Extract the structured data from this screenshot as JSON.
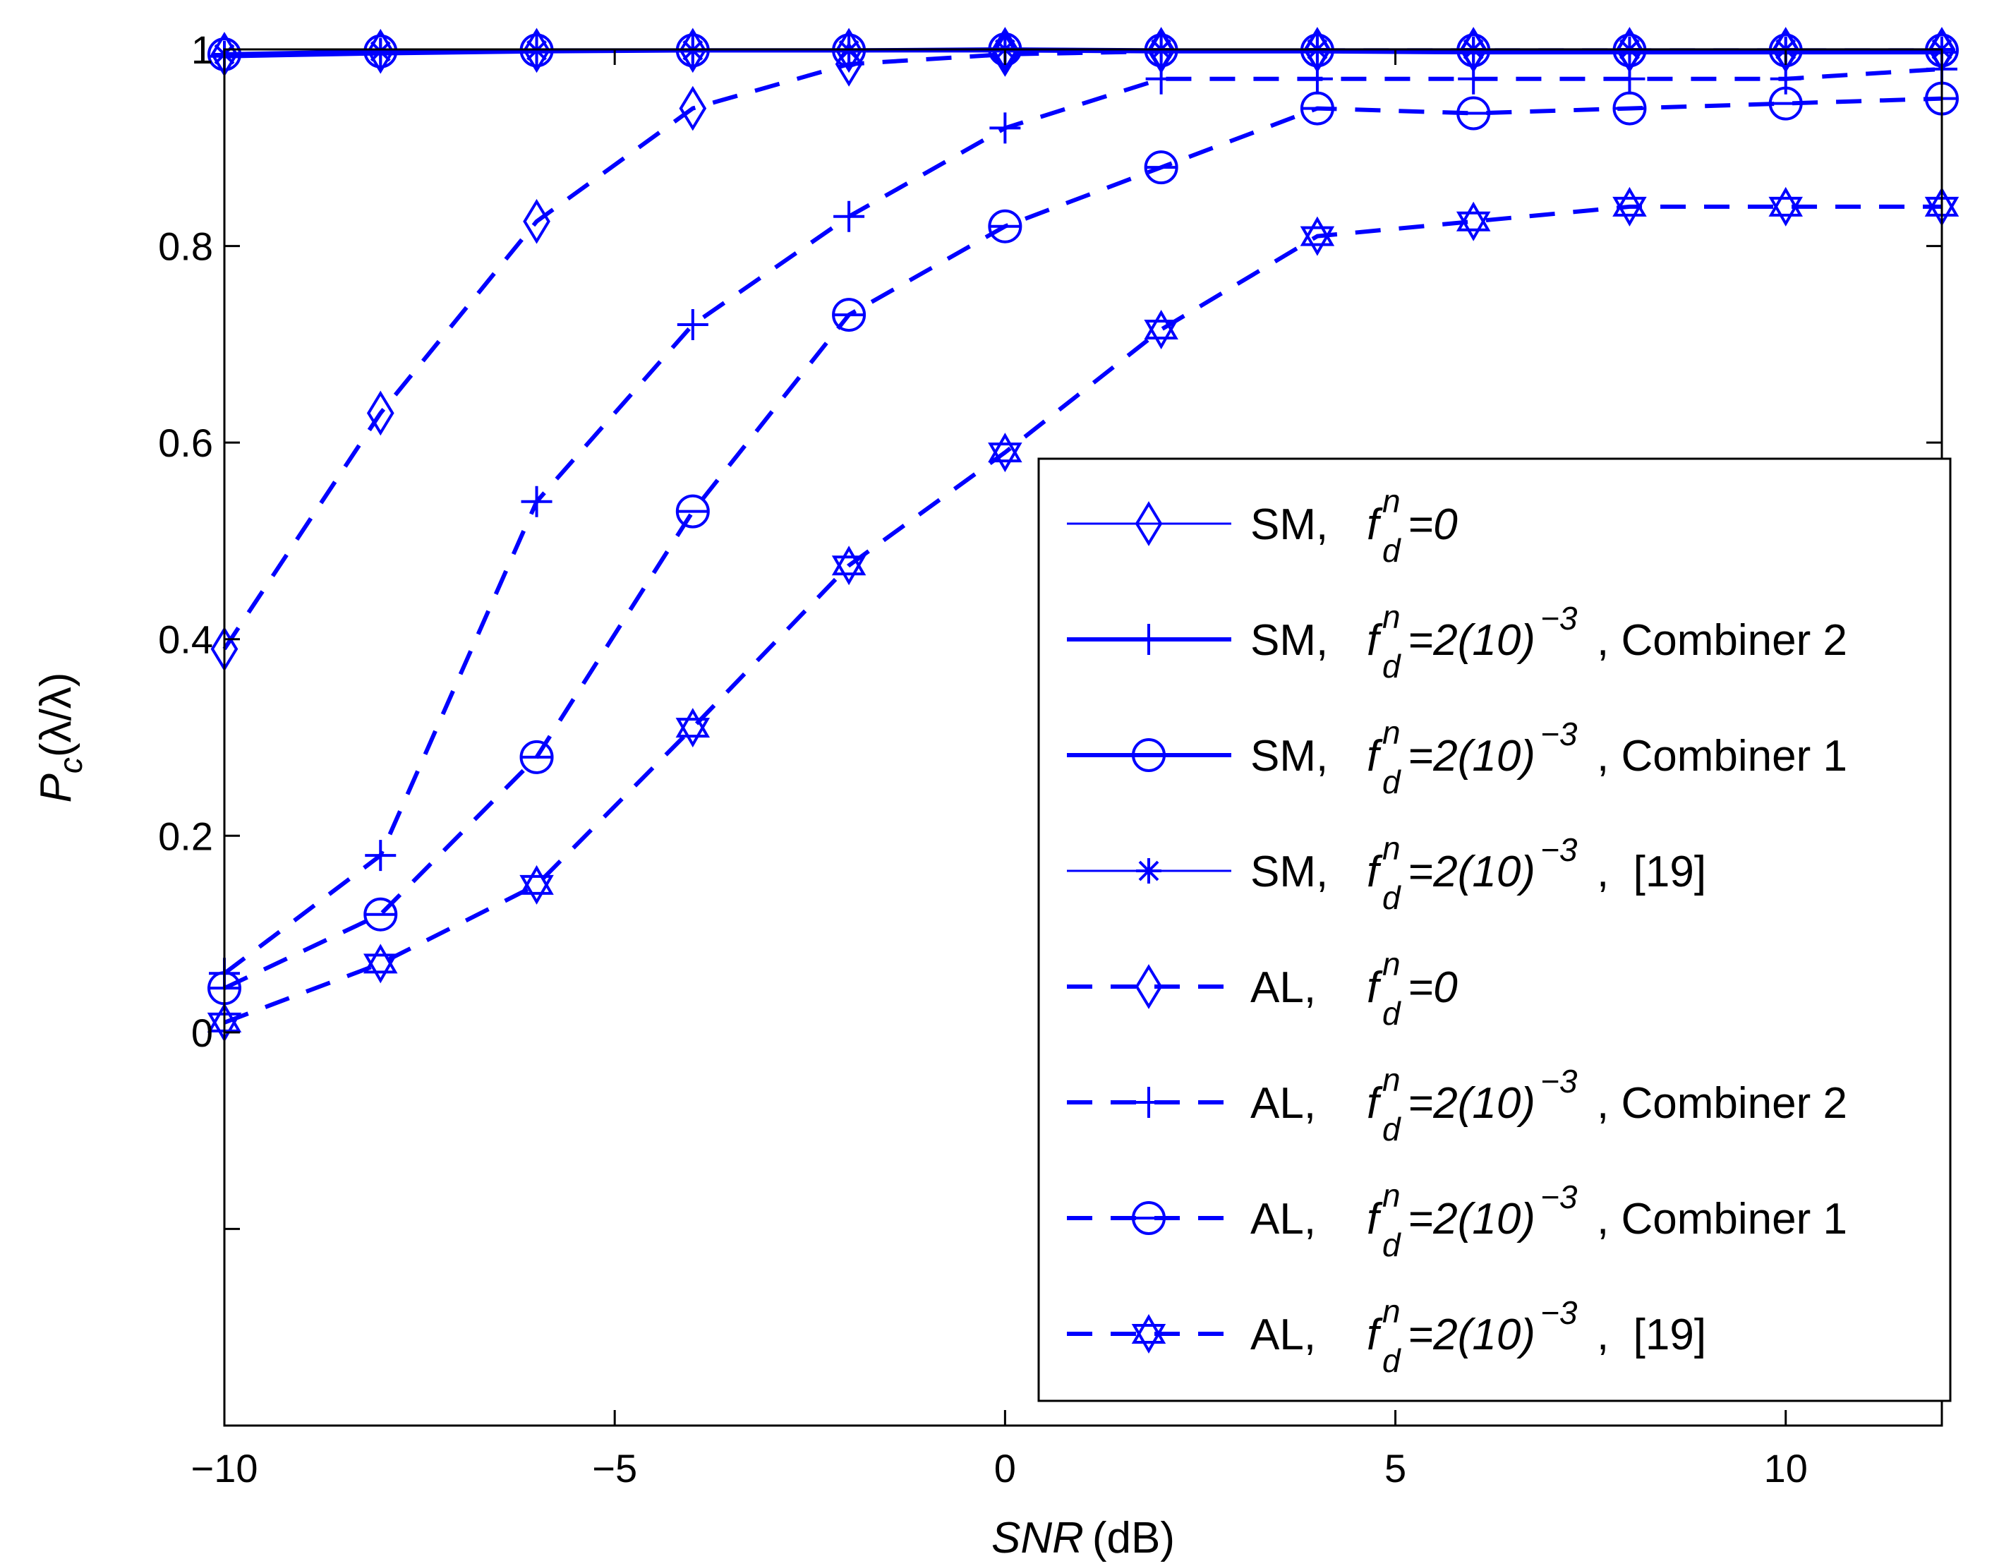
{
  "chart_data": {
    "type": "line",
    "title": "",
    "xlabel_italic": "SNR",
    "xlabel_unit": "(dB)",
    "ylabel": "Pc(λ/λ)",
    "ylabel_main": "P",
    "ylabel_sub": "c",
    "ylabel_rest": "(λ/λ)",
    "xlim": [
      -10,
      12
    ],
    "ylim": [
      -0.4,
      1.0
    ],
    "xticks": [
      -10,
      -5,
      0,
      5,
      10
    ],
    "xtick_labels": [
      "−10",
      "−5",
      "0",
      "5",
      "10"
    ],
    "yticks": [
      0,
      0.2,
      0.4,
      0.6,
      0.8,
      1
    ],
    "ytick_labels": [
      "0",
      "0.2",
      "0.4",
      "0.6",
      "0.8",
      "1"
    ],
    "y_minor_unlabeled_ticks": [
      -0.2
    ],
    "x": [
      -10,
      -8,
      -6,
      -4,
      -2,
      0,
      2,
      4,
      6,
      8,
      10,
      12
    ],
    "color": "#0000ff",
    "series": [
      {
        "name": "SM, fd=0",
        "label_prefix": "SM,",
        "label_value": "=0",
        "label_sup": "",
        "label_suffix": "",
        "line": "solid",
        "width": "thin",
        "marker": "diamond",
        "values": [
          0.995,
          0.998,
          0.999,
          0.999,
          0.999,
          1.0,
          1.0,
          1.0,
          1.0,
          1.0,
          1.0,
          1.0
        ]
      },
      {
        "name": "SM, fd=2(10)^-3, Combiner 2",
        "label_prefix": "SM,",
        "label_value": "=2(10)",
        "label_sup": "−3",
        "label_suffix": ", Combiner 2",
        "line": "solid",
        "width": "thick",
        "marker": "plus",
        "values": [
          0.993,
          0.996,
          0.998,
          0.999,
          0.999,
          0.999,
          0.998,
          0.998,
          0.997,
          0.997,
          0.997,
          0.997
        ]
      },
      {
        "name": "SM, fd=2(10)^-3, Combiner 1",
        "label_prefix": "SM,",
        "label_value": "=2(10)",
        "label_sup": "−3",
        "label_suffix": ", Combiner 1",
        "line": "solid",
        "width": "thick",
        "marker": "circle",
        "values": [
          0.995,
          0.998,
          0.999,
          0.999,
          0.999,
          1.0,
          0.999,
          0.999,
          0.999,
          0.999,
          0.999,
          0.999
        ]
      },
      {
        "name": "SM, fd=2(10)^-3, [19]",
        "label_prefix": "SM,",
        "label_value": "=2(10)",
        "label_sup": "−3",
        "label_suffix": ",  [19]",
        "line": "solid",
        "width": "thin",
        "marker": "asterisk",
        "values": [
          0.995,
          0.998,
          0.999,
          0.999,
          0.999,
          1.0,
          1.0,
          1.0,
          1.0,
          1.0,
          1.0,
          1.0
        ]
      },
      {
        "name": "AL, fd=0",
        "label_prefix": "AL,",
        "label_value": "=0",
        "label_sup": "",
        "label_suffix": "",
        "line": "dashed",
        "width": "thick",
        "marker": "diamond",
        "values": [
          0.39,
          0.63,
          0.825,
          0.94,
          0.985,
          0.995,
          0.998,
          0.999,
          0.999,
          0.999,
          0.999,
          0.999
        ]
      },
      {
        "name": "AL, fd=2(10)^-3, Combiner 2",
        "label_prefix": "AL,",
        "label_value": "=2(10)",
        "label_sup": "−3",
        "label_suffix": ", Combiner 2",
        "line": "dashed",
        "width": "thick",
        "marker": "plus",
        "values": [
          0.06,
          0.18,
          0.54,
          0.72,
          0.83,
          0.92,
          0.97,
          0.97,
          0.97,
          0.97,
          0.97,
          0.98
        ]
      },
      {
        "name": "AL, fd=2(10)^-3, Combiner 1",
        "label_prefix": "AL,",
        "label_value": "=2(10)",
        "label_sup": "−3",
        "label_suffix": ", Combiner 1",
        "line": "dashed",
        "width": "thick",
        "marker": "circle-minus",
        "values": [
          0.045,
          0.12,
          0.28,
          0.53,
          0.73,
          0.82,
          0.88,
          0.94,
          0.935,
          0.94,
          0.945,
          0.95
        ]
      },
      {
        "name": "AL, fd=2(10)^-3, [19]",
        "label_prefix": "AL,",
        "label_value": "=2(10)",
        "label_sup": "−3",
        "label_suffix": ",  [19]",
        "line": "dashed",
        "width": "thick",
        "marker": "hexagram",
        "values": [
          0.01,
          0.07,
          0.15,
          0.31,
          0.475,
          0.59,
          0.715,
          0.81,
          0.825,
          0.84,
          0.84,
          0.84
        ]
      }
    ],
    "legend_position": "lower-right",
    "legend_symbol_base": "f",
    "legend_symbol_sup": "n",
    "legend_symbol_sub": "d",
    "grid": false
  }
}
